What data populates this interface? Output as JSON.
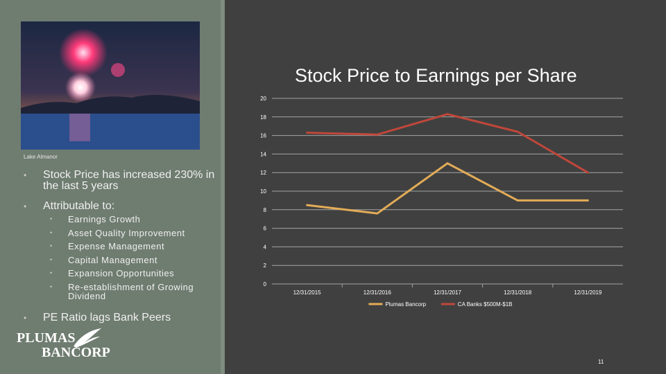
{
  "left_panel": {
    "photo_caption": "Lake Almanor",
    "bullets": [
      {
        "text": "Stock Price has increased 230% in the last 5 years"
      },
      {
        "text": "Attributable to:"
      }
    ],
    "sub_bullets": [
      "Earnings Growth",
      "Asset Quality Improvement",
      "Expense Management",
      "Capital Management",
      "Expansion Opportunities",
      "Re-establishment of Growing Dividend"
    ],
    "last_bullet": "PE Ratio lags Bank Peers",
    "logo": {
      "line1": "PLUMAS",
      "line2": "BANCORP"
    }
  },
  "slide_number": "11",
  "chart_data": {
    "type": "line",
    "title": "Stock Price to Earnings per Share",
    "categories": [
      "12/31/2015",
      "12/31/2016",
      "12/31/2017",
      "12/31/2018",
      "12/31/2019"
    ],
    "series": [
      {
        "name": "Plumas Bancorp",
        "values": [
          8.5,
          7.6,
          13.0,
          9.0,
          9.0
        ],
        "color": "#e3ac57"
      },
      {
        "name": "CA Banks $500M-$1B",
        "values": [
          16.3,
          16.1,
          18.3,
          16.4,
          12.0
        ],
        "color": "#c0473a"
      }
    ],
    "ylim": [
      0,
      20
    ],
    "yticks": [
      "0",
      "2",
      "4",
      "6",
      "8",
      "10",
      "12",
      "14",
      "16",
      "18",
      "20"
    ],
    "grid": true,
    "legend": "bottom",
    "colors": {
      "gridline": "#a5a5a5",
      "text": "#ffffff"
    }
  }
}
